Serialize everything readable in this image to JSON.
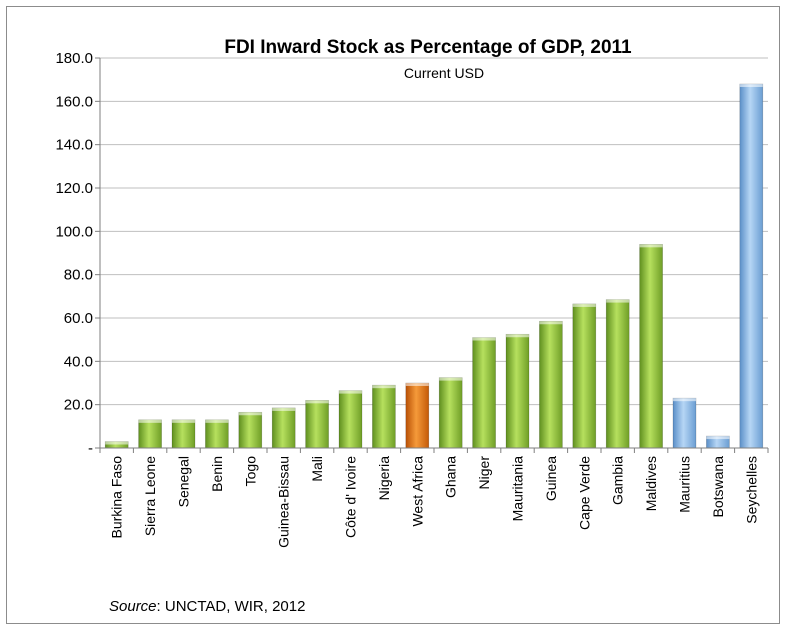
{
  "chart_data": {
    "type": "bar",
    "title": "FDI Inward Stock as Percentage of GDP, 2011",
    "subtitle": "Current USD",
    "xlabel": "",
    "ylabel": "",
    "ylim": [
      0,
      180
    ],
    "yticks": [
      "-",
      "20.0",
      "40.0",
      "60.0",
      "80.0",
      "100.0",
      "120.0",
      "140.0",
      "160.0",
      "180.0"
    ],
    "grid": true,
    "legend": "none",
    "categories": [
      "Burkina Faso",
      "Sierra Leone",
      "Senegal",
      "Benin",
      "Togo",
      "Guinea-Bissau",
      "Mali",
      "Côte d' Ivoire",
      "Nigeria",
      "West Africa",
      "Ghana",
      "Niger",
      "Mauritania",
      "Guinea",
      "Cape Verde",
      "Gambia",
      "Maldives",
      "Mauritius",
      "Botswana",
      "Seychelles"
    ],
    "values": [
      3,
      13,
      13,
      13,
      16.5,
      18.5,
      22,
      26.5,
      29,
      30,
      32.5,
      51,
      52.5,
      58.5,
      66.5,
      68.5,
      94,
      23,
      5.5,
      168
    ],
    "bar_colors": [
      "green",
      "green",
      "green",
      "green",
      "green",
      "green",
      "green",
      "green",
      "green",
      "orange",
      "green",
      "green",
      "green",
      "green",
      "green",
      "green",
      "green",
      "blue",
      "blue",
      "blue"
    ],
    "palette": {
      "green": "#8fc33a",
      "orange": "#e6700a",
      "blue": "#7fb2e5",
      "grid": "#bfbfbf",
      "axis": "#7f7f7f"
    }
  },
  "source": {
    "label": "Source",
    "text": ": UNCTAD, WIR, 2012"
  }
}
